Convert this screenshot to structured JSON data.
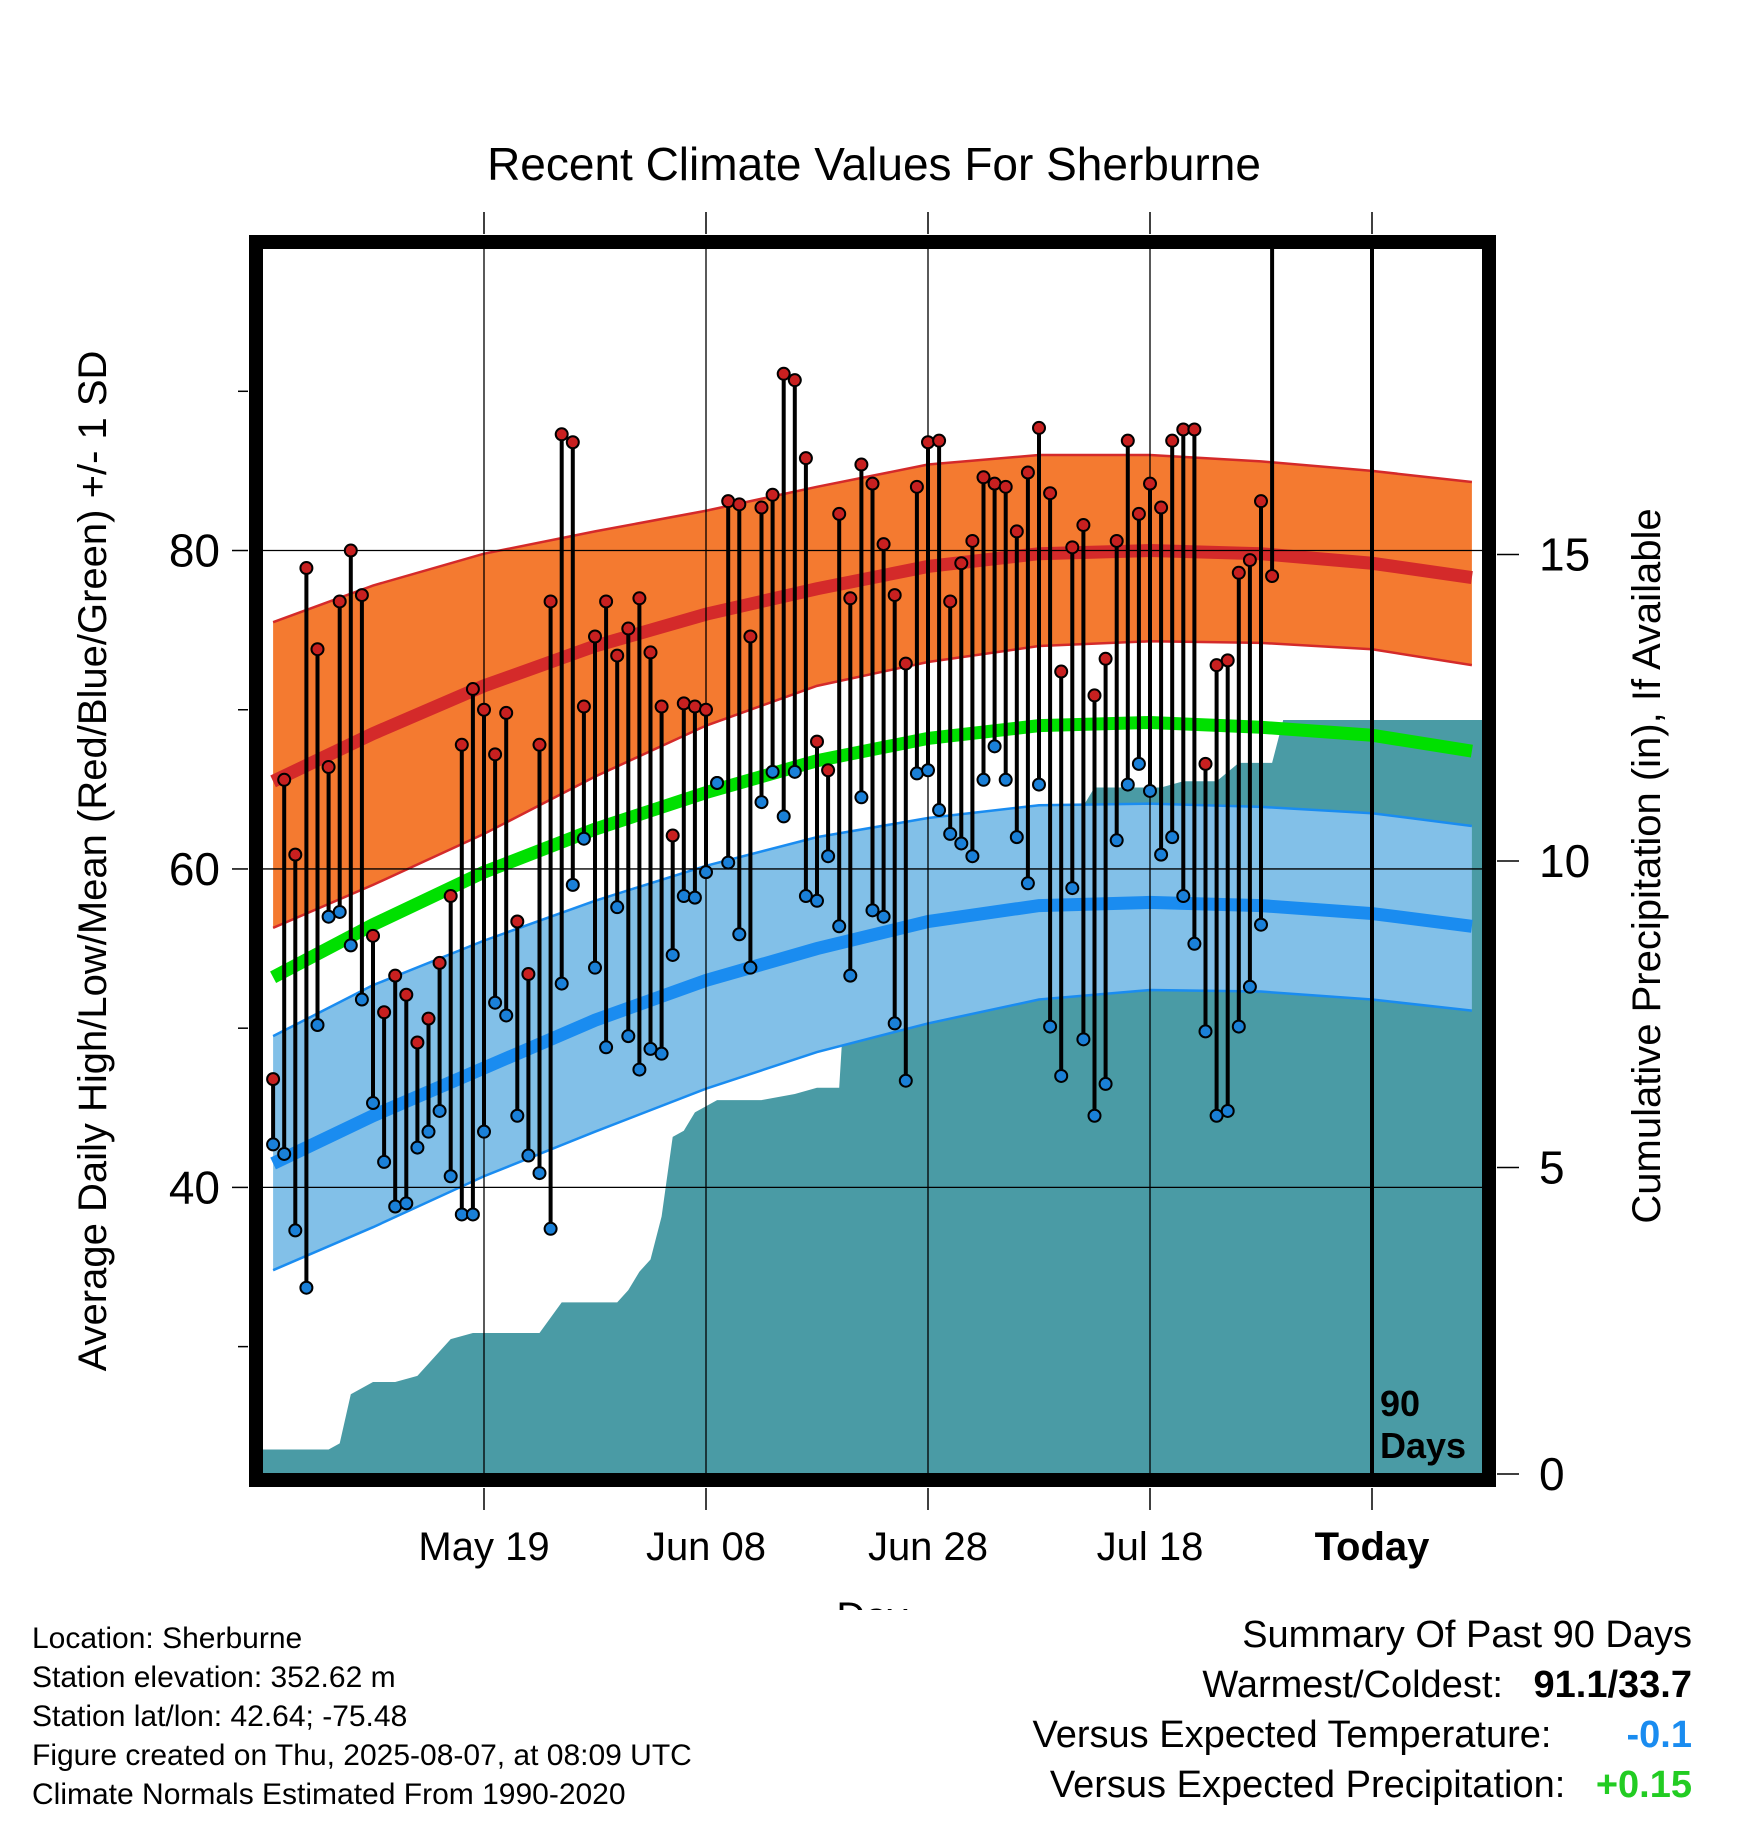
{
  "chart_data": {
    "type": "line",
    "title": "Recent Climate Values For Sherburne",
    "xlabel": "Day",
    "ylabel": "Average Daily High/Low/Mean (Red/Blue/Green) +/- 1 SD",
    "y2label": "Cumulative Precipitation (in), If Available",
    "x_range_days": [
      -100,
      10
    ],
    "ylim": [
      22,
      99
    ],
    "y2lim": [
      0,
      20
    ],
    "y_ticks": [
      40,
      60,
      80
    ],
    "y2_ticks": [
      0,
      5,
      10,
      15
    ],
    "x_ticks": [
      {
        "day": -80,
        "label": "May 19"
      },
      {
        "day": -60,
        "label": "Jun 08"
      },
      {
        "day": -40,
        "label": "Jun 28"
      },
      {
        "day": -20,
        "label": "Jul 18"
      },
      {
        "day": 0,
        "label": "Today"
      }
    ],
    "period_marker": {
      "day": 0,
      "label_line1": "90",
      "label_line2": "Days"
    },
    "grid": true,
    "colors": {
      "high_band": "#f47a30",
      "high_mean": "#d42a2a",
      "mean_line": "#00e000",
      "low_band": "#82c0e8",
      "low_mean": "#1a8cf0",
      "precip": "#4a9ba5",
      "high_marker": "#c82020",
      "low_marker": "#1a80d8"
    },
    "normals": {
      "days": [
        -99,
        -90,
        -80,
        -70,
        -60,
        -50,
        -40,
        -30,
        -20,
        -10,
        0,
        9
      ],
      "high_mean": [
        65.5,
        68.5,
        71.5,
        74.0,
        76.0,
        77.6,
        79.0,
        79.8,
        80.0,
        79.8,
        79.2,
        78.3
      ],
      "high_sd_upper": [
        75.5,
        77.8,
        79.8,
        81.2,
        82.5,
        84.0,
        85.4,
        86.0,
        86.0,
        85.6,
        85.0,
        84.3
      ],
      "high_sd_lower": [
        56.3,
        59.0,
        62.2,
        65.8,
        69.0,
        71.5,
        73.0,
        74.0,
        74.3,
        74.2,
        73.8,
        72.8
      ],
      "mean": [
        53.2,
        56.5,
        59.8,
        62.5,
        64.8,
        66.8,
        68.2,
        69.0,
        69.2,
        68.9,
        68.4,
        67.4
      ],
      "low_mean": [
        41.5,
        44.5,
        47.5,
        50.5,
        53.0,
        55.0,
        56.7,
        57.7,
        57.9,
        57.7,
        57.2,
        56.4
      ],
      "low_sd_upper": [
        49.5,
        52.7,
        55.5,
        58.0,
        60.2,
        62.0,
        63.2,
        64.0,
        64.1,
        63.9,
        63.5,
        62.7
      ],
      "low_sd_lower": [
        34.8,
        37.5,
        40.7,
        43.5,
        46.2,
        48.5,
        50.3,
        51.8,
        52.4,
        52.3,
        51.8,
        51.1
      ]
    },
    "series": [
      {
        "start_day": -99,
        "highs": [
          46.8,
          65.6,
          60.9,
          78.9,
          73.8,
          66.4,
          76.8,
          80.0,
          77.2,
          55.8,
          51.0,
          53.3,
          52.1,
          49.1,
          50.6,
          54.1,
          58.3,
          67.8,
          71.3,
          70.0,
          67.2,
          69.8,
          56.7,
          53.4,
          67.8,
          76.8,
          87.3,
          86.8,
          70.2,
          74.6,
          76.8,
          73.4,
          75.1,
          77.0,
          73.6,
          70.2,
          62.1,
          70.4,
          70.2,
          70.0,
          65.4,
          83.1,
          82.9,
          74.6,
          82.7,
          83.5,
          91.1,
          90.7,
          85.8,
          68.0,
          66.2,
          82.3,
          77.0,
          85.4,
          84.2,
          80.4,
          77.2,
          72.9,
          84.0,
          86.8,
          86.9,
          76.8,
          79.2,
          80.6,
          84.6,
          84.2,
          84.0,
          81.2,
          84.9,
          87.7,
          83.6,
          72.4,
          80.2,
          81.6,
          70.9,
          73.2,
          80.6,
          86.9,
          82.3,
          84.2,
          82.7,
          86.9,
          87.6,
          87.6,
          66.6,
          72.8,
          73.1,
          78.6,
          79.4,
          83.1,
          78.4
        ],
        "lows": [
          42.7,
          42.1,
          37.3,
          33.7,
          50.2,
          57.0,
          57.3,
          55.2,
          51.8,
          45.3,
          41.6,
          38.8,
          39.0,
          42.5,
          43.5,
          44.8,
          40.7,
          38.3,
          38.3,
          43.5,
          51.6,
          50.8,
          44.5,
          42.0,
          40.9,
          37.4,
          52.8,
          59.0,
          61.9,
          53.8,
          48.8,
          57.6,
          49.5,
          47.4,
          48.7,
          48.4,
          54.6,
          58.3,
          58.2,
          59.8,
          65.4,
          60.4,
          55.9,
          53.8,
          64.2,
          66.1,
          63.3,
          66.1,
          58.3,
          58.0,
          60.8,
          56.4,
          53.3,
          64.5,
          57.4,
          57.0,
          50.3,
          46.7,
          66.0,
          66.2,
          63.7,
          62.2,
          61.6,
          60.8,
          65.6,
          67.7,
          65.6,
          62.0,
          59.1,
          65.3,
          50.1,
          47.0,
          58.8,
          49.3,
          44.5,
          46.5,
          61.8,
          65.3,
          66.6,
          64.9,
          60.9,
          62.0,
          58.3,
          55.3,
          49.8,
          44.5,
          44.8,
          50.1,
          52.6,
          56.5
        ]
      }
    ],
    "precipitation": {
      "days": [
        -100,
        -94,
        -93,
        -92,
        -90,
        -88,
        -86,
        -84,
        -83,
        -81,
        -77,
        -75,
        -73,
        -72,
        -70,
        -68,
        -67,
        -66,
        -65,
        -64,
        -63,
        -62,
        -61,
        -59,
        -58,
        -57,
        -55,
        -52,
        -50,
        -48,
        -47,
        -46,
        -45,
        -44,
        -42,
        -40,
        -39,
        -37,
        -34,
        -32,
        -30,
        -29,
        -27,
        -25,
        -22,
        -19,
        -17,
        -14,
        -12,
        -11,
        -9,
        -8,
        -7,
        -5,
        -4,
        -3,
        9
      ],
      "values": [
        0.4,
        0.4,
        0.5,
        1.3,
        1.5,
        1.5,
        1.6,
        2.0,
        2.2,
        2.3,
        2.3,
        2.3,
        2.8,
        2.8,
        2.8,
        2.8,
        3.0,
        3.3,
        3.5,
        4.2,
        5.5,
        5.6,
        5.9,
        6.1,
        6.1,
        6.1,
        6.1,
        6.2,
        6.3,
        6.3,
        9.3,
        9.3,
        9.3,
        9.3,
        9.9,
        9.9,
        10.1,
        10.3,
        10.3,
        10.3,
        10.6,
        10.6,
        10.6,
        11.2,
        11.2,
        11.2,
        11.3,
        11.3,
        11.6,
        11.6,
        11.6,
        12.3,
        12.3,
        12.3,
        12.3,
        12.3,
        12.3
      ]
    }
  },
  "info": {
    "location": "Location: Sherburne",
    "elevation": "Station elevation: 352.62 m",
    "latlon": "Station lat/lon: 42.64; -75.48",
    "created": "Figure created on Thu, 2025-08-07, at 08:09 UTC",
    "normals": "Climate Normals Estimated From 1990-2020"
  },
  "summary": {
    "title": "Summary Of Past 90 Days",
    "warmest_label": "Warmest/Coldest:",
    "warmest_value": "91.1/33.7",
    "temp_label": "Versus Expected Temperature:",
    "temp_value": "-0.1",
    "temp_color": "#1a8cf0",
    "precip_label": "Versus Expected Precipitation:",
    "precip_value": "+0.15",
    "precip_color": "#22cc22"
  }
}
